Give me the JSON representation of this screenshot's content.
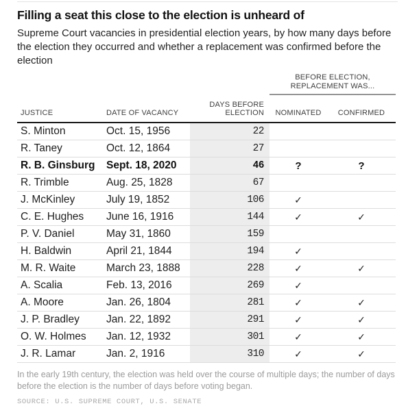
{
  "colors": {
    "band": "#ededed",
    "rule-dark": "#161616",
    "rule-light": "#dcdcdc",
    "rule-mid": "#949494",
    "top-rule": "#e4e4e4",
    "text": "#1d1d1d",
    "header-text": "#3c3c3c",
    "muted": "#9b9b9b",
    "source": "#a8a8a8"
  },
  "chart_data": {
    "type": "table",
    "title": "Filling a seat this close to the election is unheard of",
    "subtitle": "Supreme Court vacancies in presidential election years, by how many days before the election they occurred and whether a replacement was confirmed before the election",
    "group_header_line1": "BEFORE ELECTION,",
    "group_header_line2": "REPLACEMENT WAS...",
    "columns": {
      "justice": "JUSTICE",
      "date_of_vacancy": "DATE OF VACANCY",
      "days_line1": "DAYS BEFORE",
      "days_line2": "ELECTION",
      "nominated": "NOMINATED",
      "confirmed": "CONFIRMED"
    },
    "rows": [
      {
        "justice": "S. Minton",
        "date": "Oct. 15, 1956",
        "days": 22,
        "nominated": "",
        "confirmed": "",
        "bold": false
      },
      {
        "justice": "R. Taney",
        "date": "Oct. 12, 1864",
        "days": 27,
        "nominated": "",
        "confirmed": "",
        "bold": false
      },
      {
        "justice": "R. B. Ginsburg",
        "date": "Sept. 18, 2020",
        "days": 46,
        "nominated": "?",
        "confirmed": "?",
        "bold": true
      },
      {
        "justice": "R. Trimble",
        "date": "Aug. 25, 1828",
        "days": 67,
        "nominated": "",
        "confirmed": "",
        "bold": false
      },
      {
        "justice": "J. McKinley",
        "date": "July 19, 1852",
        "days": 106,
        "nominated": "✓",
        "confirmed": "",
        "bold": false
      },
      {
        "justice": "C. E. Hughes",
        "date": "June 16, 1916",
        "days": 144,
        "nominated": "✓",
        "confirmed": "✓",
        "bold": false
      },
      {
        "justice": "P. V. Daniel",
        "date": "May 31, 1860",
        "days": 159,
        "nominated": "",
        "confirmed": "",
        "bold": false
      },
      {
        "justice": "H. Baldwin",
        "date": "April 21, 1844",
        "days": 194,
        "nominated": "✓",
        "confirmed": "",
        "bold": false
      },
      {
        "justice": "M. R. Waite",
        "date": "March 23, 1888",
        "days": 228,
        "nominated": "✓",
        "confirmed": "✓",
        "bold": false
      },
      {
        "justice": "A. Scalia",
        "date": "Feb. 13, 2016",
        "days": 269,
        "nominated": "✓",
        "confirmed": "",
        "bold": false
      },
      {
        "justice": "A. Moore",
        "date": "Jan. 26, 1804",
        "days": 281,
        "nominated": "✓",
        "confirmed": "✓",
        "bold": false
      },
      {
        "justice": "J. P. Bradley",
        "date": "Jan. 22, 1892",
        "days": 291,
        "nominated": "✓",
        "confirmed": "✓",
        "bold": false
      },
      {
        "justice": "O. W. Holmes",
        "date": "Jan. 12, 1932",
        "days": 301,
        "nominated": "✓",
        "confirmed": "✓",
        "bold": false
      },
      {
        "justice": "J. R. Lamar",
        "date": "Jan. 2, 1916",
        "days": 310,
        "nominated": "✓",
        "confirmed": "✓",
        "bold": false
      }
    ],
    "footnote": "In the early 19th century, the election was held over the course of multiple days; the number of days before the election is the number of days before voting began.",
    "source": "SOURCE: U.S. SUPREME COURT, U.S. SENATE"
  }
}
